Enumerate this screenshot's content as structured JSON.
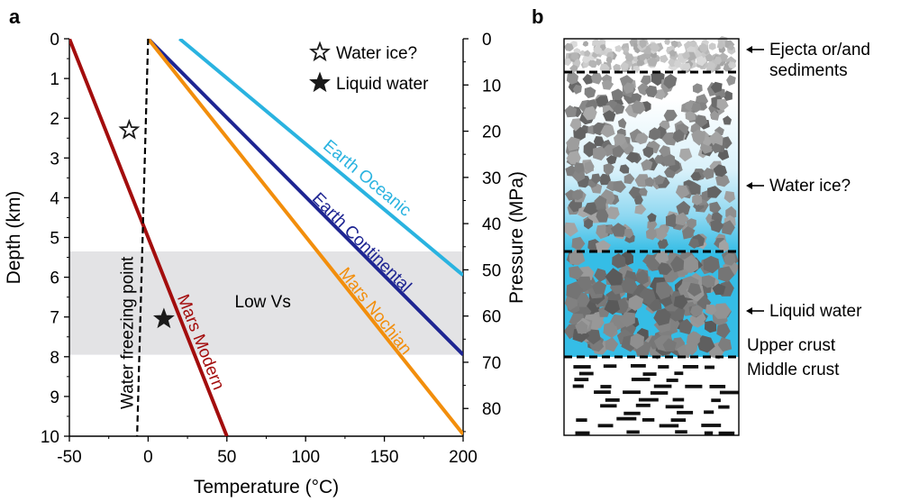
{
  "chart_data": [
    {
      "panel": "a",
      "type": "line",
      "xlabel": "Temperature (°C)",
      "ylabel": "Depth (km)",
      "y2label": "Pressure (MPa)",
      "xlim": [
        -50,
        200
      ],
      "ylim": [
        0,
        10
      ],
      "y2lim": [
        0,
        86
      ],
      "xticks": [
        "-50",
        "0",
        "50",
        "100",
        "150",
        "200"
      ],
      "yticks": [
        "0",
        "1",
        "2",
        "3",
        "4",
        "5",
        "6",
        "7",
        "8",
        "9",
        "10"
      ],
      "y2ticks": [
        "0",
        "10",
        "20",
        "30",
        "40",
        "50",
        "60",
        "70",
        "80"
      ],
      "series": [
        {
          "name": "Earth Oceanic",
          "color": "#2ab3e0",
          "x": [
            20,
            200
          ],
          "y": [
            0,
            5.95
          ]
        },
        {
          "name": "Earth Continental",
          "color": "#1e2592",
          "x": [
            0,
            200
          ],
          "y": [
            0,
            7.95
          ]
        },
        {
          "name": "Mars Nochian",
          "color": "#f28e0c",
          "x": [
            0,
            200
          ],
          "y": [
            0,
            9.95
          ]
        },
        {
          "name": "Mars Modern",
          "color": "#a30d0d",
          "x": [
            -50,
            50
          ],
          "y": [
            0,
            10
          ]
        },
        {
          "name": "Water freezing point",
          "color": "#000000",
          "style": "dashed",
          "x": [
            0,
            -7
          ],
          "y": [
            0,
            10
          ]
        }
      ],
      "region": {
        "label": "Low Vs",
        "y_range": [
          5.35,
          7.95
        ],
        "color": "#e3e3e5"
      },
      "markers": [
        {
          "label": "Water ice?",
          "symbol": "open-star",
          "x": -12,
          "y": 2.3
        },
        {
          "label": "Liquid water",
          "symbol": "filled-star",
          "x": 10,
          "y": 7.05
        }
      ],
      "legend": {
        "position": "top-right",
        "items": [
          "Water ice?",
          "Liquid water"
        ]
      }
    },
    {
      "panel": "b",
      "type": "diagram",
      "layers": [
        {
          "label": "Ejecta or/and sediments",
          "fill": "light gray rubble"
        },
        {
          "label": "Water ice?",
          "fill": "gray rubble"
        },
        {
          "label": "Liquid water",
          "fill": "gray rubble in water",
          "water_color": "#35bde6"
        },
        {
          "label": "Upper crust",
          "fill": "boundary"
        },
        {
          "label": "Middle crust",
          "fill": "black dashes"
        }
      ]
    }
  ]
}
